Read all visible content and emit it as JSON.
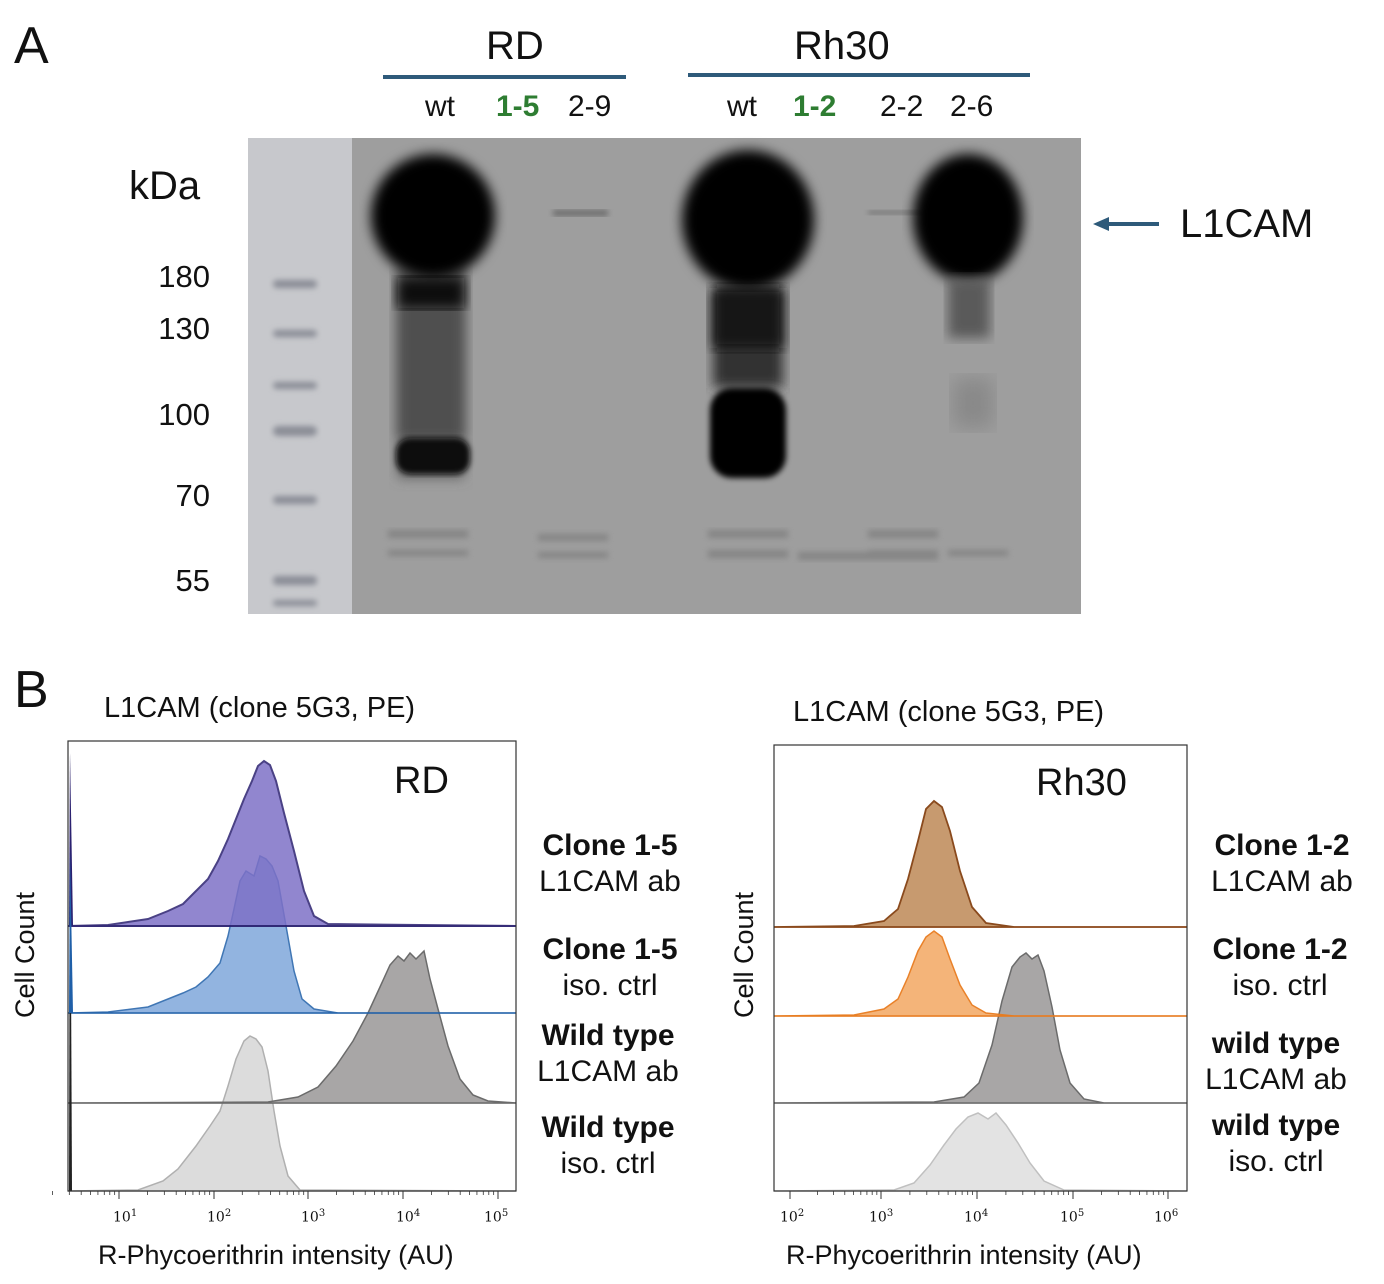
{
  "panel_a": {
    "letter": "A",
    "groups": [
      {
        "name": "RD",
        "lanes": [
          {
            "label": "wt",
            "knockout": false
          },
          {
            "label": "1-5",
            "knockout": true
          },
          {
            "label": "2-9",
            "knockout": false
          }
        ]
      },
      {
        "name": "Rh30",
        "lanes": [
          {
            "label": "wt",
            "knockout": false
          },
          {
            "label": "1-2",
            "knockout": true
          },
          {
            "label": "2-2",
            "knockout": false
          },
          {
            "label": "2-6",
            "knockout": false
          }
        ]
      }
    ],
    "kda_label": "kDa",
    "markers": [
      "180",
      "130",
      "100",
      "70",
      "55"
    ],
    "band_label": "L1CAM",
    "colors": {
      "knockout_label": "#2e7d32",
      "header_bar": "#2e5a7a"
    }
  },
  "panel_b": {
    "letter": "B",
    "plots": [
      {
        "title": "L1CAM (clone 5G3, PE)",
        "cell_line": "RD",
        "ylabel": "Cell Count",
        "xlabel": "R-Phycoerithrin intensity (AU)",
        "x_ticks": [
          "1",
          "2",
          "3",
          "4",
          "5"
        ],
        "tracks": [
          {
            "name_bold": "Clone 1-5",
            "name_plain": "L1CAM ab"
          },
          {
            "name_bold": "Clone 1-5",
            "name_plain": "iso. ctrl"
          },
          {
            "name_bold": "Wild type",
            "name_plain": "L1CAM ab"
          },
          {
            "name_bold": "Wild type",
            "name_plain": "iso. ctrl"
          }
        ]
      },
      {
        "title": "L1CAM (clone 5G3, PE)",
        "cell_line": "Rh30",
        "ylabel": "Cell Count",
        "xlabel": "R-Phycoerithrin intensity (AU)",
        "x_ticks": [
          "2",
          "3",
          "4",
          "5",
          "6"
        ],
        "tracks": [
          {
            "name_bold": "Clone 1-2",
            "name_plain": "L1CAM ab"
          },
          {
            "name_bold": "Clone 1-2",
            "name_plain": "iso. ctrl"
          },
          {
            "name_bold": "wild type",
            "name_plain": "L1CAM ab"
          },
          {
            "name_bold": "wild type",
            "name_plain": "iso. ctrl"
          }
        ]
      }
    ],
    "colors": {
      "rd_ko_ab": "#7e71c7",
      "rd_ko_iso": "#7fa8db",
      "rh30_ko_ab": "#c79a6f",
      "rh30_ko_iso": "#f4b072",
      "wt_ab": "#a8a6a6",
      "wt_iso": "#dcdcdc"
    }
  }
}
